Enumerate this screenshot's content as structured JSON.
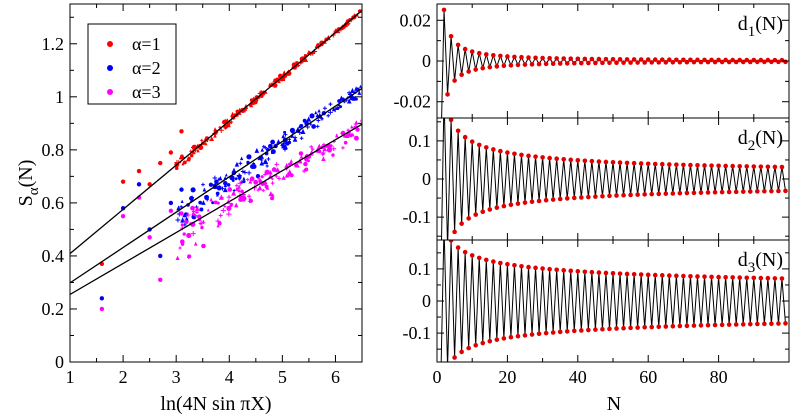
{
  "chart_data": [
    {
      "type": "scatter",
      "title": "",
      "xlabel": "ln(4N sin πX)",
      "ylabel": "S_α(N)",
      "ylabel_main": "S",
      "ylabel_sub": "α",
      "ylabel_arg": "(N)",
      "xlim": [
        1,
        6.5
      ],
      "ylim": [
        0,
        1.35
      ],
      "xticks": [
        1,
        2,
        3,
        4,
        5,
        6
      ],
      "yticks": [
        0,
        0.2,
        0.4,
        0.6,
        0.8,
        1.0,
        1.2
      ],
      "ytick_labels": [
        "0",
        "0.2",
        "0.4",
        "0.6",
        "0.8",
        "1",
        "1.2"
      ],
      "legend_position": "top-left",
      "series": [
        {
          "name": "α=1",
          "color": "#ff0000",
          "fit_intercept": 0.242,
          "fit_slope": 0.1667,
          "spread": 0.018,
          "anchor_points": [
            [
              1.6,
              0.37
            ],
            [
              2.0,
              0.68
            ],
            [
              2.3,
              0.72
            ],
            [
              2.5,
              0.67
            ],
            [
              2.7,
              0.75
            ],
            [
              2.9,
              0.79
            ],
            [
              3.1,
              0.87
            ]
          ]
        },
        {
          "name": "α=2",
          "color": "#0000ff",
          "fit_intercept": 0.165,
          "fit_slope": 0.1333,
          "spread": 0.05,
          "anchor_points": [
            [
              1.6,
              0.24
            ],
            [
              2.0,
              0.58
            ],
            [
              2.3,
              0.67
            ],
            [
              2.5,
              0.5
            ],
            [
              2.7,
              0.4
            ],
            [
              2.9,
              0.6
            ],
            [
              3.1,
              0.65
            ]
          ]
        },
        {
          "name": "α=3",
          "color": "#ff00ff",
          "fit_intercept": 0.138,
          "fit_slope": 0.1167,
          "spread": 0.06,
          "anchor_points": [
            [
              1.6,
              0.2
            ],
            [
              2.0,
              0.55
            ],
            [
              2.3,
              0.62
            ],
            [
              2.5,
              0.47
            ],
            [
              2.7,
              0.31
            ],
            [
              2.9,
              0.57
            ],
            [
              3.1,
              0.56
            ]
          ]
        }
      ]
    },
    {
      "type": "line",
      "label_main": "d",
      "label_sub": "1",
      "label_arg": "(N)",
      "xlim": [
        0,
        100
      ],
      "ylim": [
        -0.028,
        0.028
      ],
      "yticks": [
        -0.02,
        0,
        0.02
      ],
      "ytick_labels": [
        "-0.02",
        "0",
        "0.02"
      ],
      "N_start": 1,
      "N_end": 99,
      "amplitude": 0.052,
      "decay_exponent": 1.05,
      "offset": 0.0
    },
    {
      "type": "line",
      "label_main": "d",
      "label_sub": "2",
      "label_arg": "(N)",
      "xlim": [
        0,
        100
      ],
      "ylim": [
        -0.16,
        0.16
      ],
      "yticks": [
        -0.1,
        0,
        0.1
      ],
      "ytick_labels": [
        "-0.1",
        "0",
        "0.1"
      ],
      "N_start": 1,
      "N_end": 99,
      "amplitude": 0.31,
      "decay_exponent": 0.5,
      "offset": 0.0
    },
    {
      "type": "line",
      "label_main": "d",
      "label_sub": "3",
      "label_arg": "(N)",
      "xlim": [
        0,
        100
      ],
      "xticks": [
        0,
        20,
        40,
        60,
        80
      ],
      "xlabel": "N",
      "ylim": [
        -0.19,
        0.19
      ],
      "yticks": [
        -0.1,
        0,
        0.1
      ],
      "ytick_labels": [
        "-0.1",
        "0",
        "0.1"
      ],
      "N_start": 1,
      "N_end": 99,
      "amplitude": 0.29,
      "decay_exponent": 0.31,
      "offset": 0.0
    }
  ]
}
